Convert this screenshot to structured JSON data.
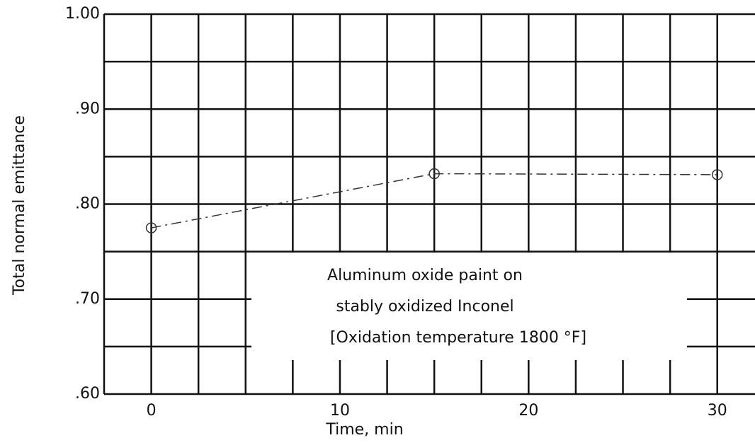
{
  "chart_data": {
    "type": "line",
    "x_label": "Time, min",
    "y_label": "Total normal emittance",
    "annotation": [
      "Aluminum oxide paint on",
      "stably oxidized Inconel",
      "[Oxidation temperature 1800 °F]"
    ],
    "x": [
      0,
      15,
      30
    ],
    "series": [
      {
        "values": [
          0.775,
          0.832,
          0.831
        ],
        "color": "#333333"
      }
    ],
    "xlim": [
      -2.5,
      32
    ],
    "ylim": [
      0.6,
      1.0
    ],
    "xticks": [
      0,
      10,
      20,
      30
    ],
    "yticks": [
      {
        "value": 0.6,
        "label": ".60"
      },
      {
        "value": 0.7,
        "label": ".70"
      },
      {
        "value": 0.8,
        "label": ".80"
      },
      {
        "value": 0.9,
        "label": ".90"
      },
      {
        "value": 1.0,
        "label": "1.00"
      }
    ],
    "xgrid": [
      -2.5,
      0,
      2.5,
      5,
      7.5,
      10,
      12.5,
      15,
      17.5,
      20,
      22.5,
      25,
      27.5,
      30
    ],
    "ygrid": [
      0.6,
      0.65,
      0.7,
      0.75,
      0.8,
      0.85,
      0.9,
      0.95,
      1.0
    ],
    "grid": true
  }
}
